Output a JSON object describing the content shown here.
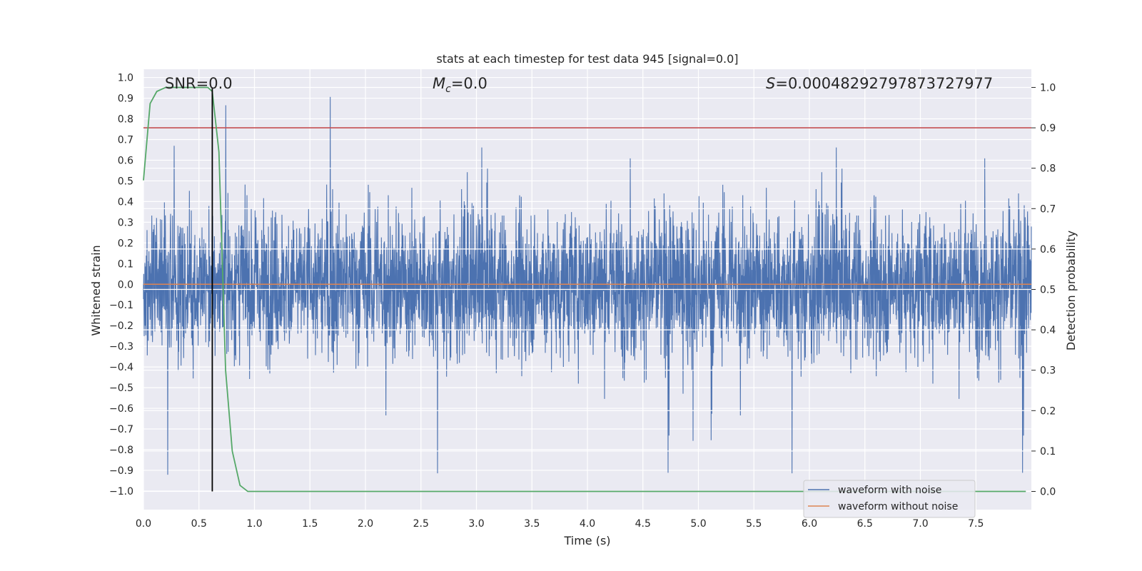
{
  "chart_data": {
    "type": "line",
    "title": "stats at each timestep for test data 945 [signal=0.0]",
    "xlabel": "Time (s)",
    "ylabel": "Whitened strain",
    "y2label": "Detection probability",
    "xlim": [
      0.0,
      8.0
    ],
    "ylim": [
      -1.09,
      1.04
    ],
    "y2lim": [
      -0.045,
      1.045
    ],
    "xticks": [
      "0.0",
      "0.5",
      "1.0",
      "1.5",
      "2.0",
      "2.5",
      "3.0",
      "3.5",
      "4.0",
      "4.5",
      "5.0",
      "5.5",
      "6.0",
      "6.5",
      "7.0",
      "7.5"
    ],
    "xtick_values": [
      0.0,
      0.5,
      1.0,
      1.5,
      2.0,
      2.5,
      3.0,
      3.5,
      4.0,
      4.5,
      5.0,
      5.5,
      6.0,
      6.5,
      7.0,
      7.5
    ],
    "yticks": [
      "1.0",
      "0.9",
      "0.8",
      "0.7",
      "0.6",
      "0.5",
      "0.4",
      "0.3",
      "0.2",
      "0.1",
      "0.0",
      "−0.1",
      "−0.2",
      "−0.3",
      "−0.4",
      "−0.5",
      "−0.6",
      "−0.7",
      "−0.8",
      "−0.9",
      "−1.0"
    ],
    "ytick_values": [
      1.0,
      0.9,
      0.8,
      0.7,
      0.6,
      0.5,
      0.4,
      0.3,
      0.2,
      0.1,
      0.0,
      -0.1,
      -0.2,
      -0.3,
      -0.4,
      -0.5,
      -0.6,
      -0.7,
      -0.8,
      -0.9,
      -1.0
    ],
    "y2ticks": [
      "1.0",
      "0.9",
      "0.8",
      "0.7",
      "0.6",
      "0.5",
      "0.4",
      "0.3",
      "0.2",
      "0.1",
      "0.0"
    ],
    "y2tick_values": [
      1.0,
      0.9,
      0.8,
      0.7,
      0.6,
      0.5,
      0.4,
      0.3,
      0.2,
      0.1,
      0.0
    ],
    "annotations": {
      "snr": "SNR=0.0",
      "mc_symbol": "M",
      "mc_sub": "c",
      "mc_value": "=0.0",
      "s_symbol": "S",
      "s_value": "=0.00048292797873727977"
    },
    "threshold_line": {
      "axis": "y2",
      "value": 0.9,
      "color": "#c44e52"
    },
    "event_marker": {
      "x": 0.62,
      "color": "#000000"
    },
    "series": [
      {
        "name": "waveform with noise",
        "color": "#4c72b0",
        "axis": "y",
        "noise_amplitude_typical": 0.45,
        "range": [
          -1.0,
          0.92
        ]
      },
      {
        "name": "waveform without noise",
        "color": "#dd8452",
        "axis": "y",
        "values_constant": 0.0
      },
      {
        "name": "detection probability",
        "color": "#55a868",
        "axis": "y2",
        "x": [
          0.0,
          0.06,
          0.12,
          0.2,
          0.3,
          0.4,
          0.5,
          0.58,
          0.62,
          0.68,
          0.74,
          0.8,
          0.87,
          0.94,
          1.0,
          2.0,
          4.0,
          6.0,
          7.95
        ],
        "values": [
          0.77,
          0.96,
          0.99,
          1.0,
          1.0,
          1.0,
          1.0,
          1.0,
          0.99,
          0.84,
          0.3,
          0.1,
          0.015,
          0.0,
          0.0,
          0.0,
          0.0,
          0.0,
          0.0
        ]
      }
    ],
    "legend": {
      "location": "lower-right",
      "entries": [
        {
          "label": "waveform with noise",
          "color": "#4c72b0"
        },
        {
          "label": "waveform without noise",
          "color": "#dd8452"
        }
      ]
    }
  }
}
